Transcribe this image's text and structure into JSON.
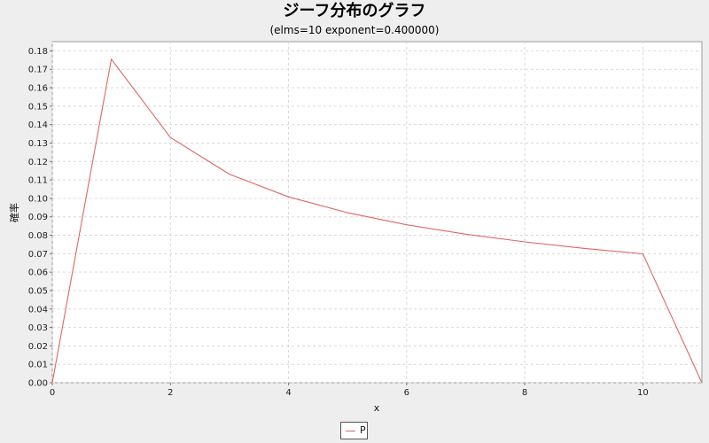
{
  "chart_data": {
    "type": "line",
    "title": "ジーフ分布のグラフ",
    "subtitle": "(elms=10 exponent=0.400000)",
    "xlabel": "x",
    "ylabel": "確率",
    "xlim": [
      0,
      11
    ],
    "ylim": [
      0,
      0.185
    ],
    "grid": true,
    "legend_position": "bottom-center",
    "x_ticks": [
      "0",
      "2",
      "4",
      "6",
      "8",
      "10"
    ],
    "x_tick_values": [
      0,
      2,
      4,
      6,
      8,
      10
    ],
    "y_ticks": [
      "0.00",
      "0.01",
      "0.02",
      "0.03",
      "0.04",
      "0.05",
      "0.06",
      "0.07",
      "0.08",
      "0.09",
      "0.10",
      "0.11",
      "0.12",
      "0.13",
      "0.14",
      "0.15",
      "0.16",
      "0.17",
      "0.18"
    ],
    "y_tick_values": [
      0,
      0.01,
      0.02,
      0.03,
      0.04,
      0.05,
      0.06,
      0.07,
      0.08,
      0.09,
      0.1,
      0.11,
      0.12,
      0.13,
      0.14,
      0.15,
      0.16,
      0.17,
      0.18
    ],
    "series": [
      {
        "name": "P",
        "color": "#e06666",
        "x": [
          0,
          1,
          2,
          3,
          4,
          5,
          6,
          7,
          8,
          9,
          10,
          11
        ],
        "y": [
          0.0,
          0.1755,
          0.133,
          0.1131,
          0.1008,
          0.0922,
          0.0857,
          0.0806,
          0.0764,
          0.0729,
          0.0699,
          0.0
        ]
      }
    ]
  },
  "colors": {
    "background": "#eeeeee",
    "plot_background": "#ffffff",
    "grid": "#d9d9d9",
    "series": "#e06666"
  }
}
